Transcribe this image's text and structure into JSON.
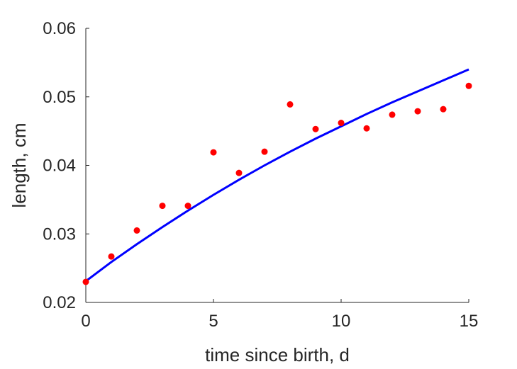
{
  "chart_data": {
    "type": "scatter",
    "title": "",
    "xlabel": "time since birth, d",
    "ylabel": "length, cm",
    "xlim": [
      0,
      15
    ],
    "ylim": [
      0.02,
      0.06
    ],
    "x_ticks": [
      0,
      5,
      10,
      15
    ],
    "x_tick_labels": [
      "0",
      "5",
      "10",
      "15"
    ],
    "y_ticks": [
      0.02,
      0.03,
      0.04,
      0.05,
      0.06
    ],
    "y_tick_labels": [
      "0.02",
      "0.03",
      "0.04",
      "0.05",
      "0.06"
    ],
    "grid": false,
    "series": [
      {
        "kind": "scatter",
        "color": "#ff0000",
        "x": [
          0,
          1,
          2,
          3,
          4,
          5,
          6,
          7,
          8,
          9,
          10,
          11,
          12,
          13,
          14,
          15
        ],
        "y": [
          0.023,
          0.0267,
          0.0305,
          0.0341,
          0.0341,
          0.0419,
          0.0389,
          0.042,
          0.0489,
          0.0453,
          0.0462,
          0.0454,
          0.0474,
          0.0479,
          0.0482,
          0.0516
        ]
      },
      {
        "kind": "line",
        "color": "#0000ff",
        "x": [
          0,
          1,
          2,
          3,
          4,
          5,
          6,
          7,
          8,
          9,
          10,
          11,
          12,
          13,
          14,
          15
        ],
        "y": [
          0.0231,
          0.0259,
          0.0285,
          0.031,
          0.0334,
          0.0357,
          0.0379,
          0.04,
          0.042,
          0.0439,
          0.0457,
          0.0475,
          0.0492,
          0.0508,
          0.0524,
          0.054
        ]
      }
    ]
  }
}
